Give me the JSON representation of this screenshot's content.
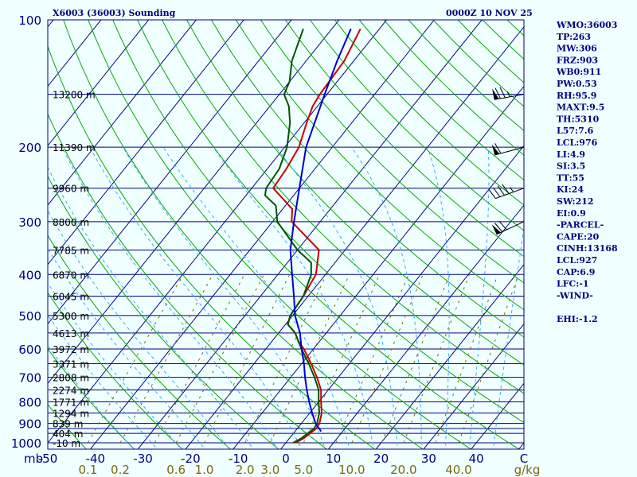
{
  "header": {
    "station_title": "X6003 (36003) Sounding",
    "valid_time": "0000Z 10 NOV 25"
  },
  "indices": [
    "WMO:36003",
    "TP:263",
    "MW:306",
    "FRZ:903",
    "WB0:911",
    "PW:0.53",
    "RH:95.9",
    "MAXT:9.5",
    "TH:5310",
    "L57:7.6",
    "LCL:976",
    "LI:4.9",
    "SI:3.5",
    "TT:55",
    "KI:24",
    "SW:212",
    "EI:0.9",
    "-PARCEL-",
    "CAPE:20",
    "CINH:13168",
    "LCL:927",
    "CAP:6.9",
    "LFC:-1",
    "-WIND-",
    "",
    "EHI:-1.2"
  ],
  "colors": {
    "background": "#f0ffff",
    "axis": "#000080",
    "isobar": "#000080",
    "isotherm": "#000080",
    "dry_adiabat": "#00aa00",
    "moist_adiabat": "#33aaff",
    "mixing_ratio": "#7a6a10",
    "temperature": "#cc0000",
    "dewpoint": "#005500",
    "parcel": "#0000cc",
    "barb": "#000000"
  },
  "chart_data": {
    "type": "skew-t",
    "title": "X6003 (36003) Sounding",
    "pressure_range_mb": [
      1000,
      100
    ],
    "temperature_range_c": [
      -50,
      50
    ],
    "pressure_unit_label": "mb",
    "mixing_ratio_unit_label": "g/kg",
    "pressure_labels": [
      "100",
      "200",
      "300",
      "400",
      "500",
      "600",
      "700",
      "800",
      "900",
      "1000"
    ],
    "pressure_values": [
      100,
      200,
      300,
      400,
      500,
      600,
      700,
      800,
      900,
      1000
    ],
    "isobars_mb": [
      100,
      150,
      200,
      250,
      300,
      350,
      400,
      450,
      500,
      550,
      600,
      650,
      700,
      750,
      800,
      850,
      900,
      925,
      950,
      1000
    ],
    "temperature_labels": [
      "-50",
      "-40",
      "-30",
      "-20",
      "-10",
      "0",
      "10",
      "20",
      "30",
      "40",
      "C"
    ],
    "temperature_values": [
      -50,
      -40,
      -30,
      -20,
      -10,
      0,
      10,
      20,
      30,
      40,
      50
    ],
    "mixing_ratio_labels": [
      "0.1",
      "0.2",
      "0.6",
      "1.0",
      "2.0",
      "3.0",
      "5.0",
      "10.0",
      "20.0",
      "40.0"
    ],
    "mixing_ratio_values": [
      0.1,
      0.2,
      0.6,
      1.0,
      2.0,
      3.0,
      5.0,
      10.0,
      20.0,
      40.0
    ],
    "height_labels": [
      {
        "p": 150,
        "label": "13200 m"
      },
      {
        "p": 200,
        "label": "11390 m"
      },
      {
        "p": 250,
        "label": "9960 m"
      },
      {
        "p": 300,
        "label": "8800 m"
      },
      {
        "p": 350,
        "label": "7785 m"
      },
      {
        "p": 400,
        "label": "6870 m"
      },
      {
        "p": 450,
        "label": "6045 m"
      },
      {
        "p": 500,
        "label": "5300 m"
      },
      {
        "p": 550,
        "label": "4613 m"
      },
      {
        "p": 600,
        "label": "3972 m"
      },
      {
        "p": 650,
        "label": "3371 m"
      },
      {
        "p": 700,
        "label": "2808 m"
      },
      {
        "p": 750,
        "label": "2274 m"
      },
      {
        "p": 800,
        "label": "1771 m"
      },
      {
        "p": 850,
        "label": "1294 m"
      },
      {
        "p": 900,
        "label": "839 m"
      },
      {
        "p": 950,
        "label": "404 m"
      },
      {
        "p": 1000,
        "label": "-10 m"
      }
    ],
    "temperature_profile": [
      {
        "p": 1000,
        "t": 2.0
      },
      {
        "p": 975,
        "t": 3.0
      },
      {
        "p": 950,
        "t": 3.5
      },
      {
        "p": 925,
        "t": 4.0
      },
      {
        "p": 900,
        "t": 3.8
      },
      {
        "p": 850,
        "t": 2.5
      },
      {
        "p": 800,
        "t": 0.5
      },
      {
        "p": 750,
        "t": -1.5
      },
      {
        "p": 700,
        "t": -4.5
      },
      {
        "p": 650,
        "t": -8.0
      },
      {
        "p": 600,
        "t": -12.0
      },
      {
        "p": 575,
        "t": -14.5
      },
      {
        "p": 550,
        "t": -16.5
      },
      {
        "p": 525,
        "t": -19.5
      },
      {
        "p": 500,
        "t": -20.5
      },
      {
        "p": 450,
        "t": -21.0
      },
      {
        "p": 400,
        "t": -22.0
      },
      {
        "p": 350,
        "t": -25.5
      },
      {
        "p": 330,
        "t": -29.5
      },
      {
        "p": 300,
        "t": -36.0
      },
      {
        "p": 280,
        "t": -38.0
      },
      {
        "p": 250,
        "t": -45.5
      },
      {
        "p": 225,
        "t": -46.0
      },
      {
        "p": 200,
        "t": -47.0
      },
      {
        "p": 175,
        "t": -49.5
      },
      {
        "p": 160,
        "t": -51.0
      },
      {
        "p": 150,
        "t": -51.5
      },
      {
        "p": 125,
        "t": -52.0
      },
      {
        "p": 105,
        "t": -54.0
      }
    ],
    "dewpoint_profile": [
      {
        "p": 1000,
        "t": 1.5
      },
      {
        "p": 975,
        "t": 2.5
      },
      {
        "p": 950,
        "t": 3.0
      },
      {
        "p": 925,
        "t": 3.5
      },
      {
        "p": 900,
        "t": 3.3
      },
      {
        "p": 850,
        "t": 2.0
      },
      {
        "p": 800,
        "t": 0.0
      },
      {
        "p": 750,
        "t": -2.0
      },
      {
        "p": 700,
        "t": -5.0
      },
      {
        "p": 650,
        "t": -8.5
      },
      {
        "p": 600,
        "t": -12.5
      },
      {
        "p": 575,
        "t": -14.5
      },
      {
        "p": 550,
        "t": -16.5
      },
      {
        "p": 525,
        "t": -19.5
      },
      {
        "p": 500,
        "t": -20.5
      },
      {
        "p": 450,
        "t": -21.0
      },
      {
        "p": 400,
        "t": -23.0
      },
      {
        "p": 375,
        "t": -25.0
      },
      {
        "p": 350,
        "t": -30.0
      },
      {
        "p": 300,
        "t": -39.0
      },
      {
        "p": 275,
        "t": -42.0
      },
      {
        "p": 260,
        "t": -46.0
      },
      {
        "p": 250,
        "t": -47.0
      },
      {
        "p": 225,
        "t": -47.5
      },
      {
        "p": 200,
        "t": -49.5
      },
      {
        "p": 175,
        "t": -53.0
      },
      {
        "p": 160,
        "t": -56.0
      },
      {
        "p": 150,
        "t": -59.0
      },
      {
        "p": 140,
        "t": -60.0
      },
      {
        "p": 125,
        "t": -63.0
      },
      {
        "p": 105,
        "t": -66.0
      }
    ],
    "parcel_path": [
      {
        "p": 940,
        "x": 5.5
      },
      {
        "p": 900,
        "x": 3.0
      },
      {
        "p": 850,
        "x": 0.5
      },
      {
        "p": 800,
        "x": -2.0
      },
      {
        "p": 750,
        "x": -4.5
      },
      {
        "p": 700,
        "x": -7.0
      },
      {
        "p": 650,
        "x": -9.5
      },
      {
        "p": 600,
        "x": -12.5
      },
      {
        "p": 550,
        "x": -15.5
      },
      {
        "p": 500,
        "x": -19.5
      },
      {
        "p": 450,
        "x": -23.0
      },
      {
        "p": 400,
        "x": -27.0
      },
      {
        "p": 350,
        "x": -31.5
      },
      {
        "p": 300,
        "x": -35.5
      },
      {
        "p": 250,
        "x": -40.0
      },
      {
        "p": 200,
        "x": -45.5
      },
      {
        "p": 150,
        "x": -50.5
      },
      {
        "p": 125,
        "x": -53.5
      },
      {
        "p": 105,
        "x": -56.0
      }
    ],
    "wind_barbs": [
      {
        "p": 150,
        "direction_deg": 260,
        "speed_kt": 75
      },
      {
        "p": 200,
        "direction_deg": 255,
        "speed_kt": 60
      },
      {
        "p": 250,
        "direction_deg": 250,
        "speed_kt": 45
      },
      {
        "p": 300,
        "direction_deg": 245,
        "speed_kt": 70
      }
    ]
  }
}
